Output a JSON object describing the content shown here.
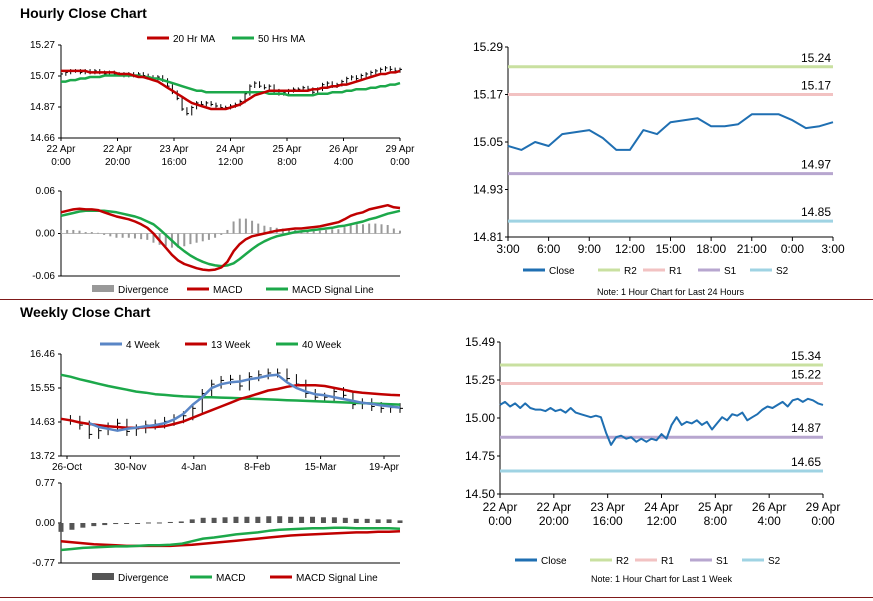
{
  "hourly_title": "Hourly Close Chart",
  "weekly_title": "Weekly Close Chart",
  "chart_data": [
    {
      "id": "hourly_price",
      "type": "line",
      "legend": [
        "20 Hr MA",
        "50 Hrs MA"
      ],
      "colors": {
        "ma20": "#c00000",
        "ma50": "#1ca84a",
        "bars": "#000000"
      },
      "ylim": [
        14.66,
        15.27
      ],
      "yticks": [
        "15.27",
        "15.07",
        "14.87",
        "14.66"
      ],
      "xticks": [
        [
          "22 Apr",
          "0:00"
        ],
        [
          "22 Apr",
          "20:00"
        ],
        [
          "23 Apr",
          "16:00"
        ],
        [
          "24 Apr",
          "12:00"
        ],
        [
          "25 Apr",
          "8:00"
        ],
        [
          "26 Apr",
          "4:00"
        ],
        [
          "29 Apr",
          "0:00"
        ]
      ],
      "close": [
        15.08,
        15.09,
        15.1,
        15.1,
        15.09,
        15.1,
        15.09,
        15.1,
        15.09,
        15.08,
        15.09,
        15.08,
        15.08,
        15.07,
        15.08,
        15.07,
        15.08,
        15.07,
        15.06,
        15.05,
        15.06,
        15.04,
        15.0,
        14.96,
        14.92,
        14.85,
        14.82,
        14.86,
        14.89,
        14.88,
        14.89,
        14.88,
        14.87,
        14.86,
        14.86,
        14.87,
        14.88,
        14.9,
        14.95,
        15.0,
        15.02,
        15.0,
        14.99,
        15.0,
        14.97,
        14.95,
        14.96,
        14.97,
        14.98,
        14.98,
        14.99,
        14.98,
        14.96,
        14.98,
        15.01,
        15.02,
        15.0,
        15.01,
        15.03,
        15.05,
        15.06,
        15.05,
        15.07,
        15.08,
        15.09,
        15.1,
        15.11,
        15.12,
        15.11,
        15.1,
        15.11
      ],
      "ma20": [
        15.1,
        15.1,
        15.1,
        15.1,
        15.1,
        15.1,
        15.09,
        15.09,
        15.09,
        15.09,
        15.09,
        15.09,
        15.08,
        15.08,
        15.08,
        15.07,
        15.06,
        15.06,
        15.05,
        15.04,
        15.03,
        15.01,
        14.99,
        14.97,
        14.95,
        14.93,
        14.91,
        14.89,
        14.88,
        14.87,
        14.86,
        14.85,
        14.85,
        14.85,
        14.85,
        14.86,
        14.87,
        14.88,
        14.9,
        14.92,
        14.94,
        14.95,
        14.96,
        14.97,
        14.97,
        14.97,
        14.97,
        14.97,
        14.97,
        14.97,
        14.97,
        14.97,
        14.98,
        14.98,
        14.99,
        14.99,
        15.0,
        15.0,
        15.01,
        15.01,
        15.02,
        15.03,
        15.04,
        15.05,
        15.06,
        15.07,
        15.08,
        15.08,
        15.09,
        15.09,
        15.1
      ],
      "ma50": [
        15.03,
        15.03,
        15.04,
        15.04,
        15.05,
        15.05,
        15.06,
        15.06,
        15.06,
        15.07,
        15.07,
        15.07,
        15.07,
        15.07,
        15.07,
        15.07,
        15.07,
        15.06,
        15.06,
        15.05,
        15.05,
        15.04,
        15.03,
        15.02,
        15.01,
        15.0,
        14.99,
        14.98,
        14.97,
        14.97,
        14.96,
        14.96,
        14.96,
        14.96,
        14.96,
        14.96,
        14.96,
        14.96,
        14.96,
        14.96,
        14.96,
        14.96,
        14.96,
        14.95,
        14.95,
        14.95,
        14.95,
        14.94,
        14.94,
        14.94,
        14.94,
        14.94,
        14.94,
        14.95,
        14.95,
        14.95,
        14.96,
        14.96,
        14.96,
        14.97,
        14.97,
        14.98,
        14.98,
        14.98,
        14.99,
        14.99,
        15.0,
        15.0,
        15.01,
        15.01,
        15.02
      ]
    },
    {
      "id": "hourly_macd",
      "type": "line",
      "legend": [
        "Divergence",
        "MACD",
        "MACD Signal Line"
      ],
      "colors": {
        "macd": "#c00000",
        "signal": "#1ca84a",
        "div": "#999999"
      },
      "ylim": [
        -0.06,
        0.06
      ],
      "yticks": [
        "0.06",
        "0.00",
        "-0.06"
      ],
      "macd": [
        0.03,
        0.032,
        0.034,
        0.035,
        0.034,
        0.034,
        0.033,
        0.03,
        0.027,
        0.024,
        0.022,
        0.02,
        0.017,
        0.013,
        0.008,
        0.0,
        -0.01,
        -0.02,
        -0.03,
        -0.038,
        -0.043,
        -0.046,
        -0.049,
        -0.051,
        -0.052,
        -0.051,
        -0.048,
        -0.04,
        -0.025,
        -0.015,
        -0.008,
        -0.004,
        -0.002,
        0.0,
        0.002,
        0.004,
        0.005,
        0.006,
        0.007,
        0.007,
        0.008,
        0.009,
        0.01,
        0.012,
        0.014,
        0.016,
        0.02,
        0.025,
        0.028,
        0.03,
        0.034,
        0.036,
        0.038,
        0.04,
        0.037,
        0.036
      ],
      "signal": [
        0.025,
        0.027,
        0.029,
        0.031,
        0.032,
        0.032,
        0.032,
        0.032,
        0.031,
        0.03,
        0.028,
        0.026,
        0.024,
        0.021,
        0.017,
        0.013,
        0.006,
        -0.002,
        -0.01,
        -0.018,
        -0.025,
        -0.031,
        -0.036,
        -0.04,
        -0.043,
        -0.045,
        -0.046,
        -0.045,
        -0.042,
        -0.036,
        -0.029,
        -0.022,
        -0.016,
        -0.011,
        -0.007,
        -0.004,
        -0.002,
        0.0,
        0.002,
        0.003,
        0.004,
        0.005,
        0.006,
        0.007,
        0.008,
        0.01,
        0.011,
        0.013,
        0.015,
        0.017,
        0.02,
        0.022,
        0.025,
        0.028,
        0.03,
        0.032
      ],
      "divergence": [
        0.005,
        0.005,
        0.005,
        0.004,
        0.002,
        0.002,
        0.001,
        -0.002,
        -0.004,
        -0.006,
        -0.006,
        -0.006,
        -0.007,
        -0.008,
        -0.009,
        -0.013,
        -0.016,
        -0.018,
        -0.02,
        -0.02,
        -0.018,
        -0.015,
        -0.013,
        -0.011,
        -0.009,
        -0.006,
        -0.002,
        0.005,
        0.017,
        0.021,
        0.021,
        0.018,
        0.014,
        0.011,
        0.009,
        0.008,
        0.007,
        0.006,
        0.005,
        0.004,
        0.004,
        0.004,
        0.004,
        0.005,
        0.006,
        0.006,
        0.009,
        0.012,
        0.013,
        0.013,
        0.014,
        0.014,
        0.013,
        0.012,
        0.007,
        0.004
      ]
    },
    {
      "id": "hourly_last24",
      "type": "line",
      "legend": [
        "Close",
        "R2",
        "R1",
        "S1",
        "S2"
      ],
      "colors": {
        "close": "#1f6fb2",
        "r2": "#c9e0a0",
        "r1": "#f2c2c2",
        "s1": "#b7a6cf",
        "s2": "#9fd3e3"
      },
      "ylim": [
        14.81,
        15.29
      ],
      "yticks": [
        "15.29",
        "15.17",
        "15.05",
        "14.93",
        "14.81"
      ],
      "xticks": [
        "3:00",
        "6:00",
        "9:00",
        "12:00",
        "15:00",
        "18:00",
        "21:00",
        "0:00",
        "3:00"
      ],
      "levels": {
        "R2": 15.24,
        "R1": 15.17,
        "S1": 14.97,
        "S2": 14.85
      },
      "level_labels": {
        "R2": "15.24",
        "R1": "15.17",
        "S1": "14.97",
        "S2": "14.85"
      },
      "close": [
        15.04,
        15.03,
        15.05,
        15.04,
        15.07,
        15.075,
        15.08,
        15.06,
        15.03,
        15.03,
        15.08,
        15.07,
        15.1,
        15.105,
        15.11,
        15.09,
        15.09,
        15.095,
        15.12,
        15.12,
        15.12,
        15.105,
        15.085,
        15.09,
        15.1
      ],
      "note": "Note: 1 Hour Chart for Last 24 Hours"
    },
    {
      "id": "weekly_price",
      "type": "line",
      "legend": [
        "4 Week",
        "13 Week",
        "40 Week"
      ],
      "colors": {
        "w4": "#5a86c6",
        "w13": "#c00000",
        "w40": "#1ca84a",
        "bars": "#000000"
      },
      "ylim": [
        13.72,
        16.46
      ],
      "yticks": [
        "16.46",
        "15.55",
        "14.63",
        "13.72"
      ],
      "xticks": [
        "26-Oct",
        "30-Nov",
        "4-Jan",
        "8-Feb",
        "15-Mar",
        "19-Apr"
      ],
      "close": [
        14.7,
        14.68,
        14.55,
        14.3,
        14.4,
        14.5,
        14.6,
        14.38,
        14.45,
        14.55,
        14.58,
        14.65,
        14.72,
        14.8,
        15.0,
        15.4,
        15.65,
        15.75,
        15.78,
        15.6,
        15.85,
        15.9,
        15.95,
        15.95,
        15.8,
        15.65,
        15.4,
        15.3,
        15.3,
        15.45,
        15.35,
        15.1,
        15.15,
        15.05,
        15.0,
        15.02,
        15.0
      ],
      "w4": [
        null,
        null,
        null,
        14.6,
        14.5,
        14.45,
        14.4,
        14.45,
        14.48,
        14.52,
        14.55,
        14.6,
        14.7,
        14.85,
        15.1,
        15.3,
        15.55,
        15.65,
        15.7,
        15.72,
        15.78,
        15.82,
        15.88,
        15.9,
        15.7,
        15.55,
        15.45,
        15.38,
        15.35,
        15.3,
        15.25,
        15.2,
        15.15,
        15.12,
        15.08,
        15.05,
        15.02
      ],
      "w13": [
        14.72,
        14.68,
        14.62,
        14.58,
        14.55,
        14.52,
        14.5,
        14.48,
        14.48,
        14.49,
        14.5,
        14.52,
        14.58,
        14.65,
        14.75,
        14.85,
        14.95,
        15.05,
        15.15,
        15.25,
        15.32,
        15.4,
        15.48,
        15.52,
        15.58,
        15.62,
        15.62,
        15.62,
        15.6,
        15.55,
        15.5,
        15.45,
        15.42,
        15.4,
        15.38,
        15.36,
        15.35
      ],
      "w40": [
        15.9,
        15.85,
        15.78,
        15.72,
        15.66,
        15.6,
        15.55,
        15.5,
        15.45,
        15.42,
        15.38,
        15.36,
        15.34,
        15.32,
        15.31,
        15.3,
        15.3,
        15.29,
        15.28,
        15.27,
        15.26,
        15.25,
        15.24,
        15.23,
        15.22,
        15.21,
        15.2,
        15.19,
        15.18,
        15.17,
        15.16,
        15.15,
        15.14,
        15.13,
        15.12,
        15.11,
        15.1
      ]
    },
    {
      "id": "weekly_macd",
      "type": "line",
      "legend": [
        "Divergence",
        "MACD",
        "MACD Signal Line"
      ],
      "colors": {
        "macd": "#1ca84a",
        "signal": "#c00000",
        "div": "#555555"
      },
      "ylim": [
        -0.77,
        0.77
      ],
      "yticks": [
        "0.77",
        "0.00",
        "-0.77"
      ],
      "macd": [
        -0.52,
        -0.5,
        -0.48,
        -0.47,
        -0.46,
        -0.45,
        -0.45,
        -0.44,
        -0.43,
        -0.43,
        -0.42,
        -0.4,
        -0.35,
        -0.3,
        -0.28,
        -0.25,
        -0.22,
        -0.2,
        -0.18,
        -0.15,
        -0.13,
        -0.12,
        -0.11,
        -0.1,
        -0.1,
        -0.09,
        -0.09,
        -0.1,
        -0.1,
        -0.1,
        -0.1,
        -0.11
      ],
      "signal": [
        -0.35,
        -0.37,
        -0.39,
        -0.41,
        -0.42,
        -0.43,
        -0.44,
        -0.44,
        -0.44,
        -0.44,
        -0.44,
        -0.43,
        -0.42,
        -0.4,
        -0.38,
        -0.36,
        -0.34,
        -0.32,
        -0.3,
        -0.28,
        -0.26,
        -0.24,
        -0.23,
        -0.22,
        -0.21,
        -0.2,
        -0.19,
        -0.18,
        -0.18,
        -0.17,
        -0.17,
        -0.16
      ],
      "divergence": [
        -0.17,
        -0.13,
        -0.09,
        -0.06,
        -0.04,
        -0.02,
        -0.01,
        0.0,
        0.01,
        0.01,
        0.02,
        0.03,
        0.07,
        0.1,
        0.1,
        0.11,
        0.12,
        0.12,
        0.12,
        0.13,
        0.13,
        0.12,
        0.12,
        0.12,
        0.11,
        0.11,
        0.1,
        0.08,
        0.08,
        0.07,
        0.07,
        0.05
      ]
    },
    {
      "id": "weekly_last_week",
      "type": "line",
      "legend": [
        "Close",
        "R2",
        "R1",
        "S1",
        "S2"
      ],
      "colors": {
        "close": "#1f6fb2",
        "r2": "#c9e0a0",
        "r1": "#f2c2c2",
        "s1": "#b7a6cf",
        "s2": "#9fd3e3"
      },
      "ylim": [
        14.5,
        15.49
      ],
      "yticks": [
        "15.49",
        "15.25",
        "15.00",
        "14.75",
        "14.50"
      ],
      "xticks": [
        [
          "22 Apr",
          "0:00"
        ],
        [
          "22 Apr",
          "20:00"
        ],
        [
          "23 Apr",
          "16:00"
        ],
        [
          "24 Apr",
          "12:00"
        ],
        [
          "25 Apr",
          "8:00"
        ],
        [
          "26 Apr",
          "4:00"
        ],
        [
          "29 Apr",
          "0:00"
        ]
      ],
      "levels": {
        "R2": 15.34,
        "R1": 15.22,
        "S1": 14.87,
        "S2": 14.65
      },
      "level_labels": {
        "R2": "15.34",
        "R1": "15.22",
        "S1": "14.87",
        "S2": "14.65"
      },
      "close": [
        15.08,
        15.1,
        15.07,
        15.09,
        15.06,
        15.09,
        15.06,
        15.05,
        15.05,
        15.04,
        15.06,
        15.04,
        15.05,
        15.03,
        15.06,
        15.03,
        15.02,
        15.01,
        15.0,
        15.01,
        15.0,
        14.9,
        14.82,
        14.87,
        14.88,
        14.86,
        14.87,
        14.84,
        14.86,
        14.84,
        14.86,
        14.85,
        14.89,
        14.86,
        14.95,
        15.0,
        14.95,
        14.97,
        14.96,
        14.98,
        14.95,
        14.97,
        14.92,
        14.96,
        15.0,
        14.98,
        15.02,
        15.01,
        15.03,
        14.98,
        15.0,
        15.02,
        15.05,
        15.07,
        15.06,
        15.08,
        15.1,
        15.07,
        15.11,
        15.12,
        15.1,
        15.12,
        15.11,
        15.09,
        15.08
      ]
    }
  ],
  "hourly_last24_note": "Note: 1 Hour Chart for Last 24 Hours",
  "weekly_last_week_note": "Note: 1 Hour Chart for Last 1 Week"
}
